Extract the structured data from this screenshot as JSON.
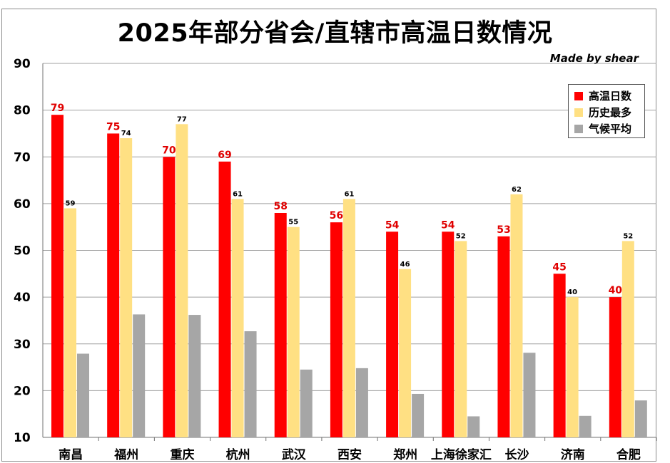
{
  "chart_data": {
    "type": "bar",
    "title": "2025年部分省会/直辖市高温日数情况",
    "credit": "Made by shear",
    "categories": [
      "南昌",
      "福州",
      "重庆",
      "杭州",
      "武汉",
      "西安",
      "郑州",
      "上海徐家汇",
      "长沙",
      "济南",
      "合肥"
    ],
    "series": [
      {
        "name": "高温日数",
        "color": "#ff0000",
        "label_color": "#e00000",
        "values": [
          79,
          75,
          70,
          69,
          58,
          56,
          54,
          54,
          53,
          45,
          40
        ]
      },
      {
        "name": "历史最多",
        "color": "#ffe083",
        "label_color": "#000000",
        "values": [
          59,
          74,
          77,
          61,
          55,
          61,
          46,
          52,
          62,
          40,
          52
        ]
      },
      {
        "name": "气候平均",
        "color": "#a6a6a6",
        "label_color": null,
        "values": [
          27.9,
          36.3,
          36.2,
          32.7,
          24.5,
          24.8,
          19.3,
          14.5,
          28.1,
          14.6,
          17.9
        ]
      }
    ],
    "ylim": [
      10,
      90
    ],
    "yticks": [
      10,
      20,
      30,
      40,
      50,
      60,
      70,
      80,
      90
    ],
    "grid": true,
    "legend_position": "top-right"
  }
}
